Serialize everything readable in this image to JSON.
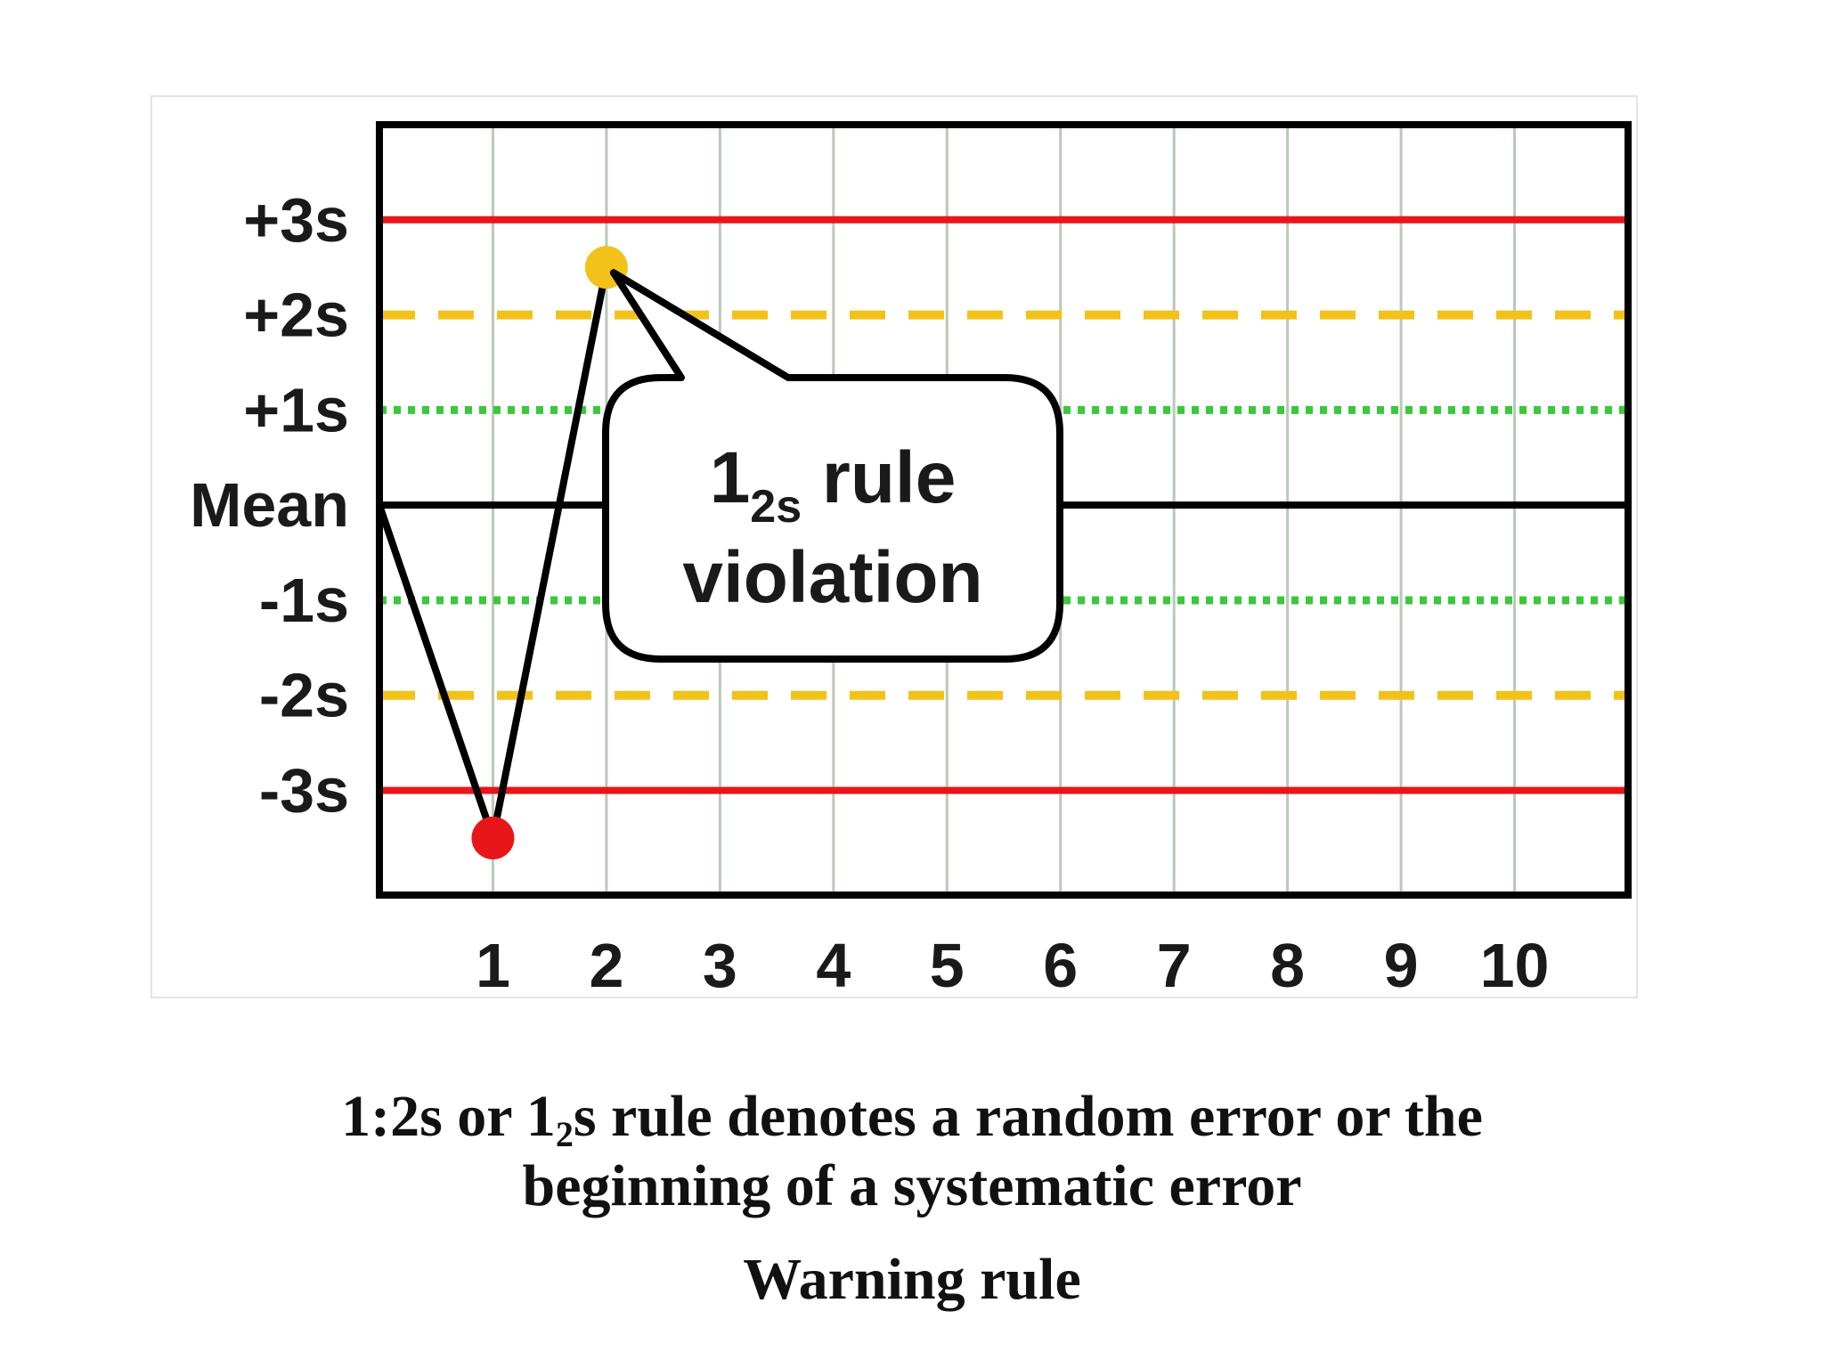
{
  "chart_data": {
    "type": "line",
    "title": "",
    "xlabel": "",
    "ylabel": "",
    "x": [
      0,
      1,
      2
    ],
    "values": [
      0,
      -3.5,
      2.5
    ],
    "xticks": [
      "1",
      "2",
      "3",
      "4",
      "5",
      "6",
      "7",
      "8",
      "9",
      "10"
    ],
    "xlim": [
      0,
      11
    ],
    "ylim": [
      -4.1,
      4.0
    ],
    "control_lines": [
      {
        "label": "+3s",
        "value": 3,
        "style": "solid",
        "color": "#e8161b"
      },
      {
        "label": "+2s",
        "value": 2,
        "style": "dashed",
        "color": "#f2c21a"
      },
      {
        "label": "+1s",
        "value": 1,
        "style": "dotted",
        "color": "#3cc73c"
      },
      {
        "label": "Mean",
        "value": 0,
        "style": "solid",
        "color": "#000000"
      },
      {
        "label": "-1s",
        "value": -1,
        "style": "dotted",
        "color": "#3cc73c"
      },
      {
        "label": "-2s",
        "value": -2,
        "style": "dashed",
        "color": "#f2c21a"
      },
      {
        "label": "-3s",
        "value": -3,
        "style": "solid",
        "color": "#e8161b"
      }
    ],
    "points": [
      {
        "x": 1,
        "y": -3.5,
        "color": "#e8161b"
      },
      {
        "x": 2,
        "y": 2.5,
        "color": "#f2c21a"
      }
    ],
    "annotation": {
      "main": "1",
      "subscript": "2s",
      "suffix": " rule",
      "line2": "violation"
    },
    "grid": true
  },
  "caption": {
    "part1": "1:2s or 1",
    "sub": "2",
    "part2": "s rule denotes a random error or the",
    "line2": "beginning of a systematic error",
    "rule_name": "Warning rule"
  }
}
